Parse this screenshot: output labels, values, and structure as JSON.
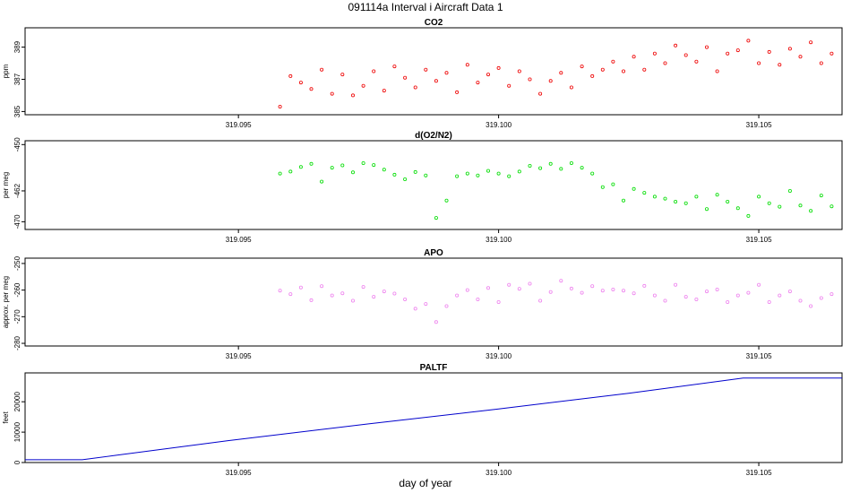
{
  "page_title": "091114a   Interval i Aircraft Data 1",
  "x_axis_label": "day of year",
  "chart_data": [
    {
      "type": "scatter",
      "title": "CO2",
      "ylabel": "ppm",
      "xlim": [
        319.0909,
        319.1066
      ],
      "ylim": [
        384.8,
        390.2
      ],
      "x_ticks": [
        "319.095",
        "319.100",
        "319.105"
      ],
      "x_tick_values": [
        319.095,
        319.1,
        319.105
      ],
      "y_ticks": [
        "385",
        "387",
        "389"
      ],
      "y_tick_values": [
        385,
        387,
        389
      ],
      "grid": false,
      "series": [
        {
          "color": "#ee0000",
          "marker": "open-circle",
          "x": [
            319.0958,
            319.096,
            319.0962,
            319.0964,
            319.0966,
            319.0968,
            319.097,
            319.0972,
            319.0974,
            319.0976,
            319.0978,
            319.098,
            319.0982,
            319.0984,
            319.0986,
            319.0988,
            319.099,
            319.0992,
            319.0994,
            319.0996,
            319.0998,
            319.1,
            319.1002,
            319.1004,
            319.1006,
            319.1008,
            319.101,
            319.1012,
            319.1014,
            319.1016,
            319.1018,
            319.102,
            319.1022,
            319.1024,
            319.1026,
            319.1028,
            319.103,
            319.1032,
            319.1034,
            319.1036,
            319.1038,
            319.104,
            319.1042,
            319.1044,
            319.1046,
            319.1048,
            319.105,
            319.1052,
            319.1054,
            319.1056,
            319.1058,
            319.106,
            319.1062,
            319.1064
          ],
          "y": [
            385.3,
            387.2,
            386.8,
            386.4,
            387.6,
            386.1,
            387.3,
            386.0,
            386.6,
            387.5,
            386.3,
            387.8,
            387.1,
            386.5,
            387.6,
            386.9,
            387.4,
            386.2,
            387.9,
            386.8,
            387.3,
            387.7,
            386.6,
            387.5,
            387.0,
            386.1,
            386.9,
            387.4,
            386.5,
            387.8,
            387.2,
            387.6,
            388.1,
            387.5,
            388.4,
            387.6,
            388.6,
            388.0,
            389.1,
            388.5,
            388.1,
            389.0,
            387.5,
            388.6,
            388.8,
            389.4,
            388.0,
            388.7,
            387.9,
            388.9,
            388.4,
            389.3,
            388.0,
            388.6
          ]
        }
      ]
    },
    {
      "type": "scatter",
      "title": "d(O2/N2)",
      "ylabel": "per meg",
      "xlim": [
        319.0909,
        319.1066
      ],
      "ylim": [
        -472,
        -449
      ],
      "x_ticks": [
        "319.095",
        "319.100",
        "319.105"
      ],
      "x_tick_values": [
        319.095,
        319.1,
        319.105
      ],
      "y_ticks": [
        "-470",
        "-462",
        "-450"
      ],
      "y_tick_values": [
        -470,
        -462,
        -450
      ],
      "grid": false,
      "series": [
        {
          "color": "#00dd00",
          "marker": "open-circle",
          "x": [
            319.0958,
            319.096,
            319.0962,
            319.0964,
            319.0966,
            319.0968,
            319.097,
            319.0972,
            319.0974,
            319.0976,
            319.0978,
            319.098,
            319.0982,
            319.0984,
            319.0986,
            319.0988,
            319.099,
            319.0992,
            319.0994,
            319.0996,
            319.0998,
            319.1,
            319.1002,
            319.1004,
            319.1006,
            319.1008,
            319.101,
            319.1012,
            319.1014,
            319.1016,
            319.1018,
            319.102,
            319.1022,
            319.1024,
            319.1026,
            319.1028,
            319.103,
            319.1032,
            319.1034,
            319.1036,
            319.1038,
            319.104,
            319.1042,
            319.1044,
            319.1046,
            319.1048,
            319.105,
            319.1052,
            319.1054,
            319.1056,
            319.1058,
            319.106,
            319.1062,
            319.1064
          ],
          "y": [
            -457.5,
            -457.0,
            -455.8,
            -455.0,
            -459.6,
            -456.0,
            -455.4,
            -457.2,
            -454.8,
            -455.3,
            -456.5,
            -457.8,
            -459.0,
            -457.1,
            -458.0,
            -469.0,
            -464.5,
            -458.2,
            -457.5,
            -458.0,
            -456.8,
            -457.5,
            -458.2,
            -457.0,
            -455.5,
            -456.1,
            -455.0,
            -456.3,
            -454.8,
            -456.0,
            -457.5,
            -461.0,
            -460.3,
            -464.5,
            -461.5,
            -462.5,
            -463.5,
            -464.0,
            -464.8,
            -465.2,
            -463.5,
            -466.7,
            -463.0,
            -464.8,
            -466.5,
            -468.5,
            -463.5,
            -465.2,
            -466.1,
            -462.0,
            -465.8,
            -467.2,
            -463.2,
            -466.0
          ]
        }
      ]
    },
    {
      "type": "scatter",
      "title": "APO",
      "ylabel": "approx. per meg",
      "xlim": [
        319.0909,
        319.1066
      ],
      "ylim": [
        -281,
        -248
      ],
      "x_ticks": [
        "319.095",
        "319.100",
        "319.105"
      ],
      "x_tick_values": [
        319.095,
        319.1,
        319.105
      ],
      "y_ticks": [
        "-280",
        "-270",
        "-260",
        "-250"
      ],
      "y_tick_values": [
        -280,
        -270,
        -260,
        -250
      ],
      "grid": false,
      "series": [
        {
          "color": "#ee82ee",
          "marker": "open-circle",
          "x": [
            319.0958,
            319.096,
            319.0962,
            319.0964,
            319.0966,
            319.0968,
            319.097,
            319.0972,
            319.0974,
            319.0976,
            319.0978,
            319.098,
            319.0982,
            319.0984,
            319.0986,
            319.0988,
            319.099,
            319.0992,
            319.0994,
            319.0996,
            319.0998,
            319.1,
            319.1002,
            319.1004,
            319.1006,
            319.1008,
            319.101,
            319.1012,
            319.1014,
            319.1016,
            319.1018,
            319.102,
            319.1022,
            319.1024,
            319.1026,
            319.1028,
            319.103,
            319.1032,
            319.1034,
            319.1036,
            319.1038,
            319.104,
            319.1042,
            319.1044,
            319.1046,
            319.1048,
            319.105,
            319.1052,
            319.1054,
            319.1056,
            319.1058,
            319.106,
            319.1062,
            319.1064
          ],
          "y": [
            -260.2,
            -261.5,
            -259.0,
            -263.8,
            -258.5,
            -262.0,
            -261.2,
            -264.0,
            -258.8,
            -262.5,
            -260.5,
            -261.3,
            -263.5,
            -267.0,
            -265.2,
            -272.0,
            -266.0,
            -262.0,
            -260.0,
            -263.5,
            -259.2,
            -264.5,
            -258.0,
            -259.5,
            -257.6,
            -264.0,
            -260.7,
            -256.5,
            -259.4,
            -261.0,
            -258.5,
            -260.2,
            -259.8,
            -260.2,
            -261.2,
            -258.4,
            -262.0,
            -264.0,
            -258.0,
            -262.5,
            -263.5,
            -260.5,
            -259.8,
            -264.5,
            -262.0,
            -261.0,
            -258.0,
            -264.5,
            -262.0,
            -260.5,
            -264.0,
            -266.0,
            -263.0,
            -261.5
          ]
        }
      ]
    },
    {
      "type": "line",
      "title": "PALTF",
      "ylabel": "feet",
      "xlim": [
        319.0909,
        319.1066
      ],
      "ylim": [
        0,
        29500
      ],
      "x_ticks": [
        "319.095",
        "319.100",
        "319.105"
      ],
      "x_tick_values": [
        319.095,
        319.1,
        319.105
      ],
      "y_ticks": [
        "0",
        "10000",
        "20000"
      ],
      "y_tick_values": [
        0,
        10000,
        20000
      ],
      "grid": false,
      "series": [
        {
          "color": "#0000cc",
          "x": [
            319.0909,
            319.092,
            319.0948,
            319.0975,
            319.1,
            319.1025,
            319.1047,
            319.1066
          ],
          "y": [
            900,
            900,
            7200,
            12700,
            17600,
            22800,
            27800,
            27800
          ]
        }
      ]
    }
  ]
}
